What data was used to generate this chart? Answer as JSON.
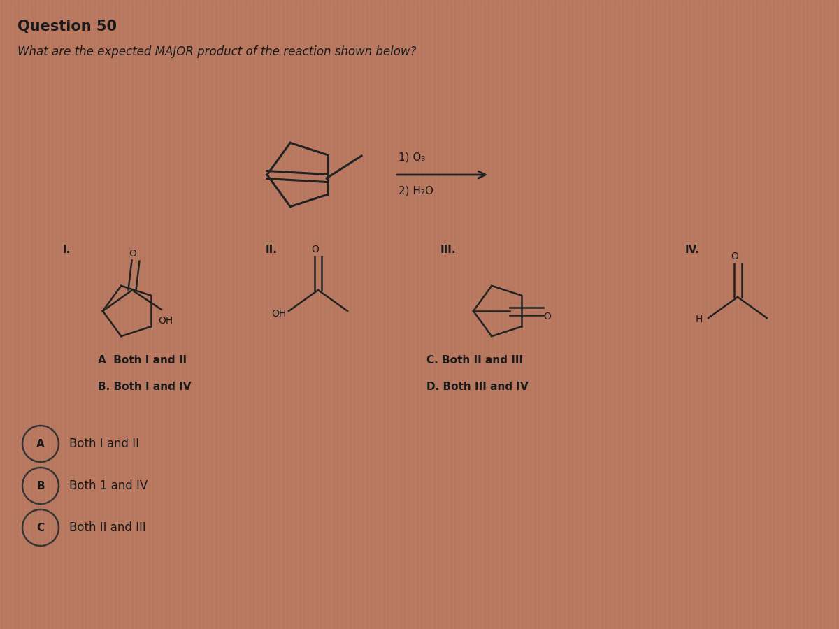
{
  "title": "Question 50",
  "question": "What are the expected MAJOR product of the reaction shown below?",
  "reagents_line1": "1) O₃",
  "reagents_line2": "2) H₂O",
  "answer_choices": [
    "A  Both I and II",
    "B. Both I and IV",
    "C. Both II and III",
    "D. Both III and IV"
  ],
  "selected_answers": [
    {
      "label": "A",
      "text": "Both I and II"
    },
    {
      "label": "B",
      "text": "Both 1 and IV"
    },
    {
      "label": "C",
      "text": "Both II and III"
    }
  ],
  "structure_labels": [
    "I.",
    "II.",
    "III.",
    "IV."
  ],
  "bg_color": "#b87860",
  "stripe_color": "#c08878",
  "text_color": "#1a1a1a",
  "title_fontsize": 15,
  "question_fontsize": 12
}
